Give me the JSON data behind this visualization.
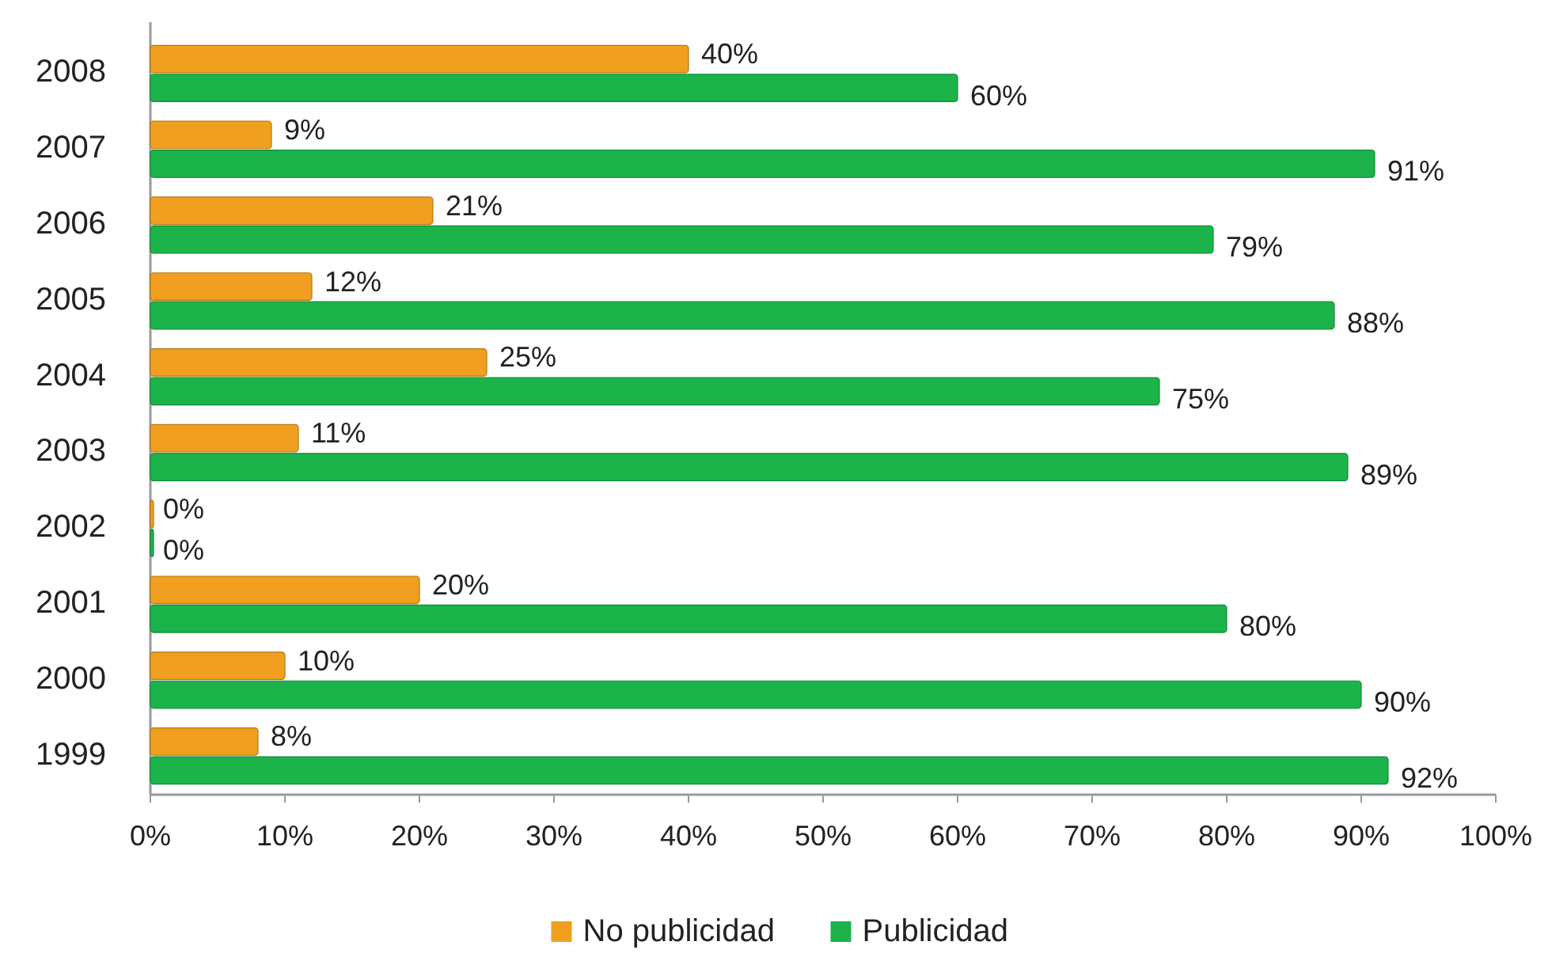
{
  "chart_data": {
    "type": "bar",
    "orientation": "horizontal",
    "categories": [
      "2008",
      "2007",
      "2006",
      "2005",
      "2004",
      "2003",
      "2002",
      "2001",
      "2000",
      "1999"
    ],
    "series": [
      {
        "name": "No publicidad",
        "color": "#f0a01e",
        "values": [
          40,
          9,
          21,
          12,
          25,
          11,
          0,
          20,
          10,
          8
        ],
        "value_labels": [
          "40%",
          "9%",
          "21%",
          "12%",
          "25%",
          "11%",
          "0%",
          "20%",
          "10%",
          "8%"
        ]
      },
      {
        "name": "Publicidad",
        "color": "#1db34b",
        "values": [
          60,
          91,
          79,
          88,
          75,
          89,
          0,
          80,
          90,
          92
        ],
        "value_labels": [
          "60%",
          "91%",
          "79%",
          "88%",
          "75%",
          "89%",
          "0%",
          "80%",
          "90%",
          "92%"
        ]
      }
    ],
    "xlim": [
      0,
      100
    ],
    "xticks": [
      {
        "value": 0,
        "label": "0%"
      },
      {
        "value": 10,
        "label": "10%"
      },
      {
        "value": 20,
        "label": "20%"
      },
      {
        "value": 30,
        "label": "30%"
      },
      {
        "value": 40,
        "label": "40%"
      },
      {
        "value": 50,
        "label": "50%"
      },
      {
        "value": 60,
        "label": "60%"
      },
      {
        "value": 70,
        "label": "70%"
      },
      {
        "value": 80,
        "label": "80%"
      },
      {
        "value": 90,
        "label": "90%"
      },
      {
        "value": 100,
        "label": "100%"
      }
    ],
    "grid": false,
    "legend": "bottom"
  }
}
